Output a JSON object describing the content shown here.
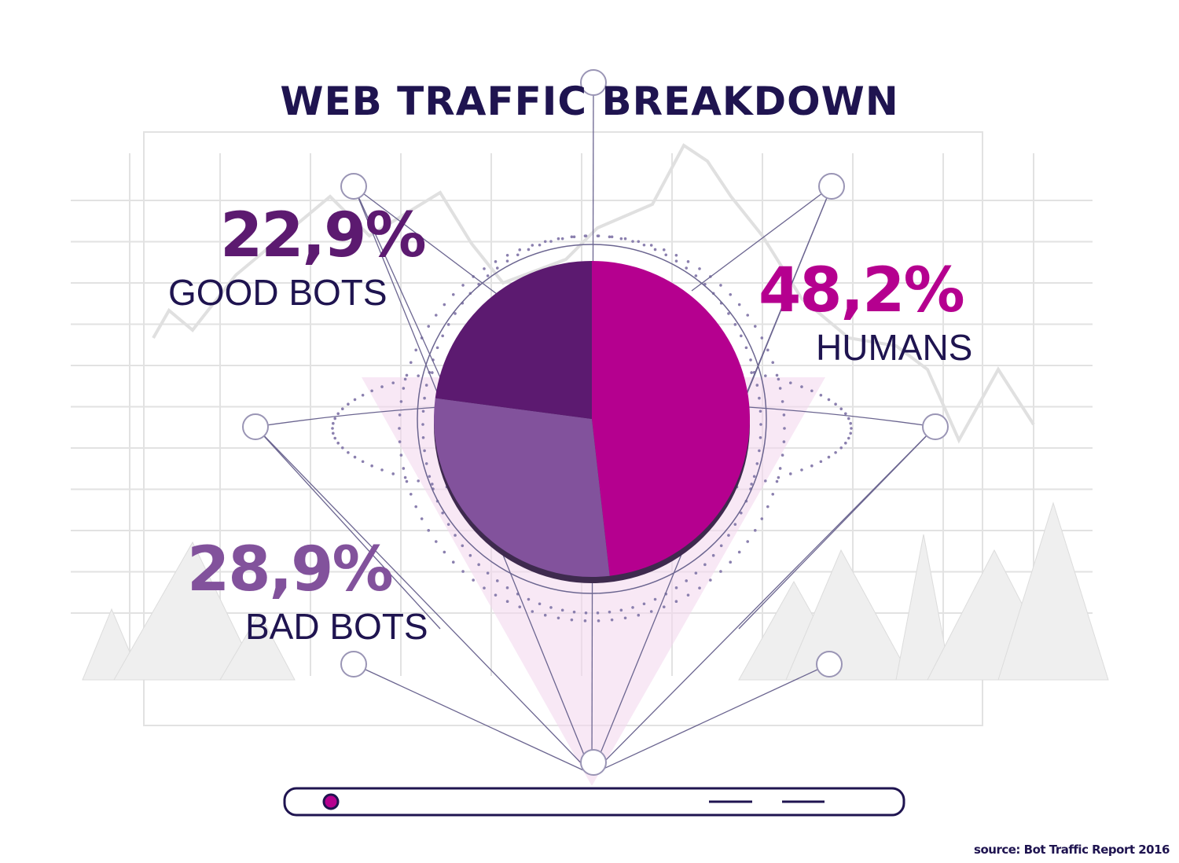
{
  "chart_data": {
    "type": "pie",
    "title": "WEB TRAFFIC BREAKDOWN",
    "slices": [
      {
        "label": "HUMANS",
        "value": 48.2,
        "display": "48,2%",
        "color": "#b5008f"
      },
      {
        "label": "BAD BOTS",
        "value": 28.9,
        "display": "28,9%",
        "color": "#82529c"
      },
      {
        "label": "GOOD BOTS",
        "value": 22.9,
        "display": "22,9%",
        "color": "#5c1a70"
      }
    ]
  },
  "source": "source: Bot Traffic Report 2016",
  "colors": {
    "title": "#1f1450",
    "accent": "#b5008f"
  }
}
